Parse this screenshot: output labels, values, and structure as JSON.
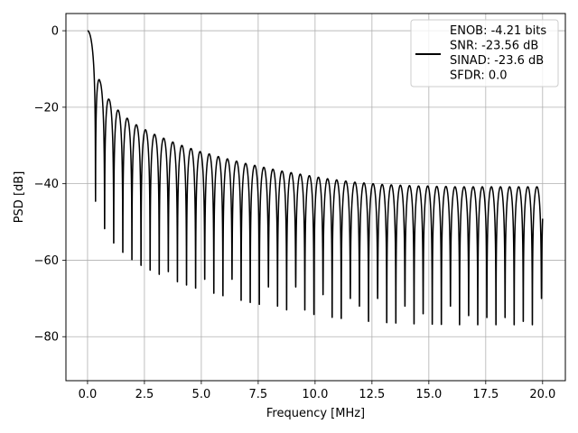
{
  "chart_data": {
    "type": "line",
    "title": "",
    "xlabel": "Frequency [MHz]",
    "ylabel": "PSD [dB]",
    "xlim": [
      -0.95,
      21.0
    ],
    "ylim": [
      -91.5,
      4.5
    ],
    "grid": true,
    "legend_position": "top-right",
    "colors": {
      "line": "#000000",
      "grid": "#b0b0b0",
      "legend_border": "#cccccc"
    },
    "xticks": [
      0.0,
      2.5,
      5.0,
      7.5,
      10.0,
      12.5,
      15.0,
      17.5,
      20.0
    ],
    "xtick_labels": [
      "0.0",
      "2.5",
      "5.0",
      "7.5",
      "10.0",
      "12.5",
      "15.0",
      "17.5",
      "20.0"
    ],
    "yticks": [
      0,
      -20,
      -40,
      -60,
      -80
    ],
    "ytick_labels": [
      "0",
      "−20",
      "−40",
      "−60",
      "−80"
    ],
    "series": [
      {
        "legend_lines": [
          "ENOB: -4.21 bits",
          "SNR: -23.56 dB",
          "SINAD: -23.6 dB",
          "SFDR: 0.0"
        ],
        "x_range": [
          0.0,
          20.0
        ],
        "notch_spacing": 0.4,
        "main_lobe_zero": 0.35,
        "peak_envelope": [
          [
            0.0,
            0.0
          ],
          [
            0.55,
            -13.3
          ],
          [
            0.95,
            -18.0
          ],
          [
            1.35,
            -20.8
          ],
          [
            1.75,
            -22.9
          ],
          [
            2.15,
            -24.6
          ],
          [
            2.55,
            -25.9
          ],
          [
            2.95,
            -27.1
          ],
          [
            3.35,
            -28.1
          ],
          [
            3.75,
            -29.1
          ],
          [
            4.15,
            -30.0
          ],
          [
            4.55,
            -30.8
          ],
          [
            4.95,
            -31.6
          ],
          [
            5.35,
            -32.2
          ],
          [
            5.75,
            -32.9
          ],
          [
            6.15,
            -33.5
          ],
          [
            6.55,
            -34.1
          ],
          [
            6.95,
            -34.7
          ],
          [
            7.35,
            -35.2
          ],
          [
            7.75,
            -35.7
          ],
          [
            8.15,
            -36.2
          ],
          [
            8.55,
            -36.7
          ],
          [
            8.95,
            -37.1
          ],
          [
            9.35,
            -37.5
          ],
          [
            9.75,
            -37.9
          ],
          [
            10.15,
            -38.3
          ],
          [
            10.55,
            -38.7
          ],
          [
            10.95,
            -39.0
          ],
          [
            11.35,
            -39.3
          ],
          [
            11.75,
            -39.6
          ],
          [
            12.15,
            -39.8
          ],
          [
            12.55,
            -40.0
          ],
          [
            12.95,
            -40.2
          ],
          [
            13.35,
            -40.3
          ],
          [
            13.75,
            -40.4
          ],
          [
            14.15,
            -40.5
          ],
          [
            14.55,
            -40.6
          ],
          [
            14.95,
            -40.6
          ],
          [
            15.35,
            -40.7
          ],
          [
            15.75,
            -40.7
          ],
          [
            16.15,
            -40.8
          ],
          [
            16.55,
            -40.8
          ],
          [
            16.95,
            -40.8
          ],
          [
            17.35,
            -40.8
          ],
          [
            17.75,
            -40.8
          ],
          [
            18.15,
            -40.8
          ],
          [
            18.55,
            -40.8
          ],
          [
            18.95,
            -40.8
          ],
          [
            19.35,
            -40.8
          ],
          [
            19.75,
            -40.8
          ],
          [
            20.0,
            -40.8
          ]
        ],
        "notch_depths": [
          -58.5,
          -60.2,
          -60.0,
          -62.0,
          -66.0,
          -62.0,
          -68.0,
          -76.0,
          -63.0,
          -66.0,
          -71.5,
          -78.0,
          -65.0,
          -72.0,
          -79.0,
          -65.0,
          -76.5,
          -72.0,
          -83.5,
          -67.0,
          -72.0,
          -78.0,
          -67.0,
          -73.0,
          -81.5,
          -69.0,
          -76.0,
          -79.0,
          -70.0,
          -72.0,
          -77.0,
          -70.0,
          -78.0,
          -86.5,
          -72.0,
          -78.0,
          -74.0,
          -77.0,
          -83.0,
          -72.0,
          -82.5,
          -74.5,
          -79.5,
          -75.0,
          -81.5,
          -75.0,
          -83.0,
          -76.0,
          -79.0,
          -70.0
        ]
      }
    ]
  }
}
